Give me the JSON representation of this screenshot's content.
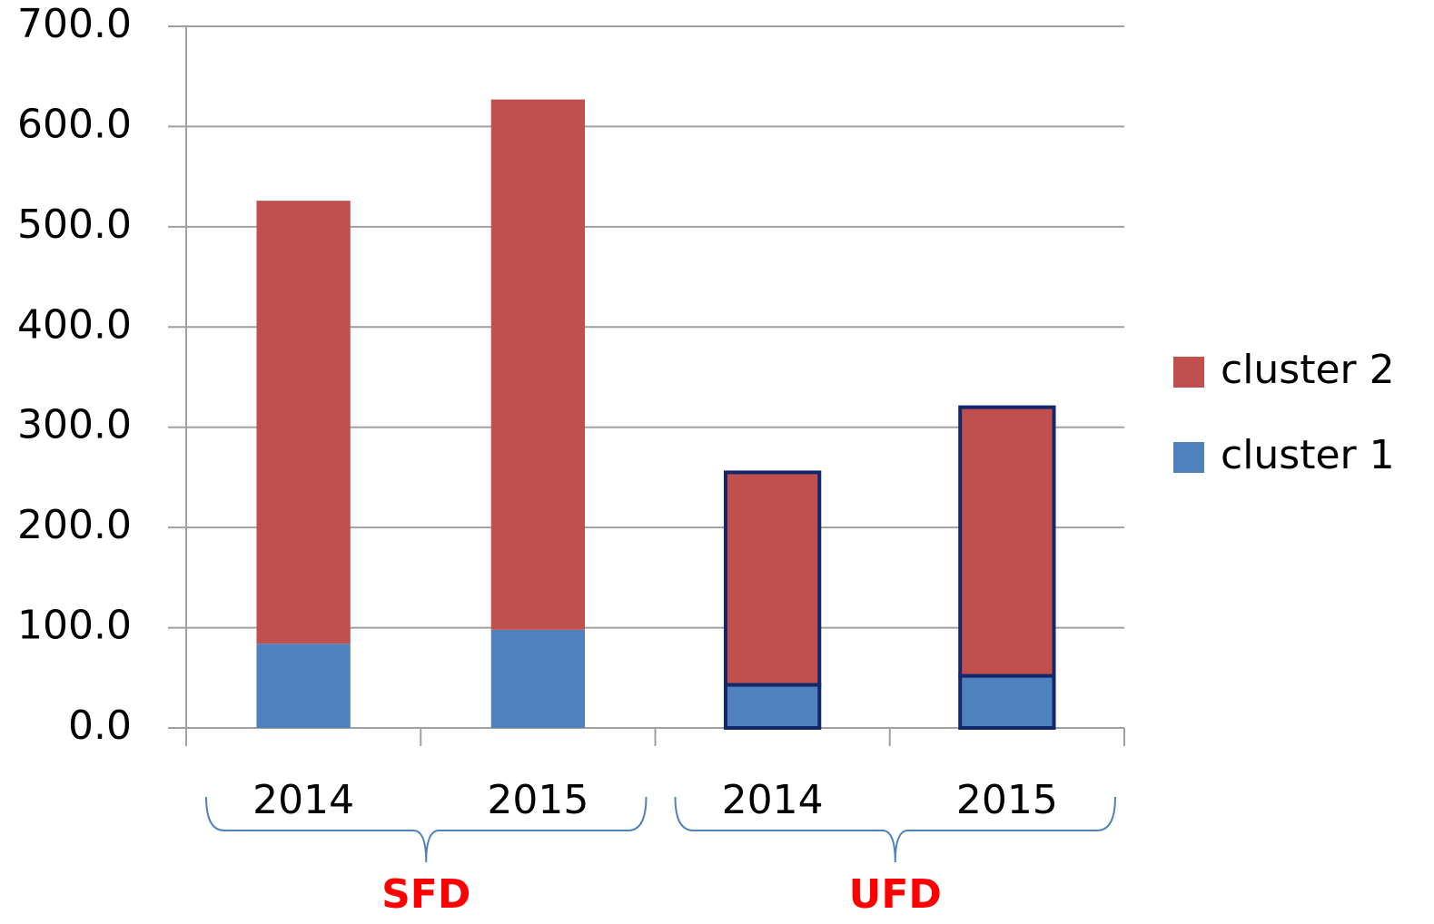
{
  "chart_data": {
    "type": "stacked_bar",
    "groups": [
      {
        "name": "SFD",
        "categories": [
          "2014",
          "2015"
        ]
      },
      {
        "name": "UFD",
        "categories": [
          "2014",
          "2015"
        ],
        "edgecolor": "#13286a"
      }
    ],
    "series": [
      {
        "name": "cluster 1",
        "color": "#4f81bd",
        "values": [
          84,
          98,
          43,
          52
        ]
      },
      {
        "name": "cluster 2",
        "color": "#c0504d",
        "values": [
          442,
          529,
          212,
          268
        ]
      }
    ],
    "ylim": [
      0,
      700
    ],
    "yticks": [
      {
        "value": 0,
        "label": "0.0"
      },
      {
        "value": 100,
        "label": "100.0"
      },
      {
        "value": 200,
        "label": "200.0"
      },
      {
        "value": 300,
        "label": "300.0"
      },
      {
        "value": 400,
        "label": "400.0"
      },
      {
        "value": 500,
        "label": "500.0"
      },
      {
        "value": 600,
        "label": "600.0"
      },
      {
        "value": 700,
        "label": "700.0"
      }
    ],
    "grid": true,
    "legend": "right",
    "group_label_color": "#ff0000",
    "brace_color": "#4f81bd"
  }
}
